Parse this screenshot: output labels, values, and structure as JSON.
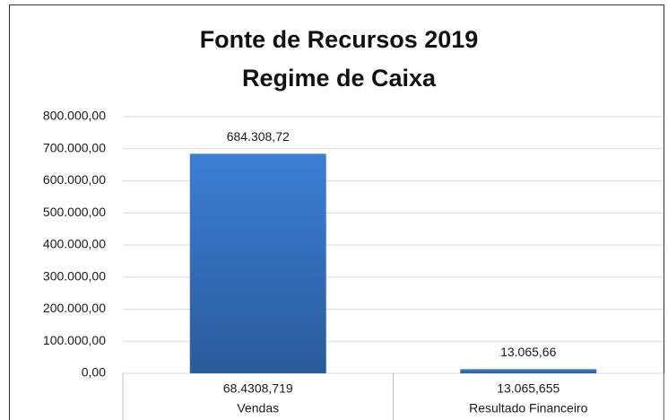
{
  "chart_data": {
    "type": "bar",
    "title": "Fonte de Recursos 2019",
    "subtitle": "Regime de Caixa",
    "categories": [
      [
        "68.4308,719",
        "Vendas"
      ],
      [
        "13.065,655",
        "Resultado Financeiro"
      ]
    ],
    "values": [
      684308.72,
      13065.66
    ],
    "value_labels": [
      "684.308,72",
      "13.065,66"
    ],
    "color": "#3b7fd6",
    "ylim": [
      0,
      800000
    ],
    "yticks": [
      {
        "value": 0,
        "label": "0,00"
      },
      {
        "value": 100000,
        "label": "100.000,00"
      },
      {
        "value": 200000,
        "label": "200.000,00"
      },
      {
        "value": 300000,
        "label": "300.000,00"
      },
      {
        "value": 400000,
        "label": "400.000,00"
      },
      {
        "value": 500000,
        "label": "500.000,00"
      },
      {
        "value": 600000,
        "label": "600.000,00"
      },
      {
        "value": 700000,
        "label": "700.000,00"
      },
      {
        "value": 800000,
        "label": "800.000,00"
      }
    ],
    "grid": true
  }
}
